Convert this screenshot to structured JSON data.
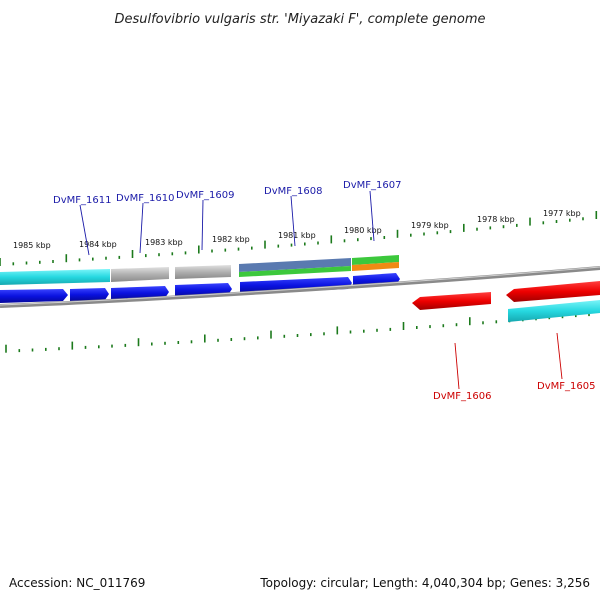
{
  "title": "Desulfovibrio vulgaris str. 'Miyazaki F', complete genome",
  "footer": {
    "accession": "Accession: NC_011769",
    "summary": "Topology: circular; Length: 4,040,304 bp; Genes: 3,256"
  },
  "scale_labels": [
    "1985 kbp",
    "1984 kbp",
    "1983 kbp",
    "1982 kbp",
    "1981 kbp",
    "1980 kbp",
    "1979 kbp",
    "1978 kbp",
    "1977 kbp"
  ],
  "gene_labels": {
    "forward": [
      "DvMF_1611",
      "DvMF_1610",
      "DvMF_1609",
      "DvMF_1608",
      "DvMF_1607"
    ],
    "reverse": [
      "DvMF_1606",
      "DvMF_1605"
    ]
  },
  "colors": {
    "forward_label": "#1a1aa8",
    "reverse_label": "#cc0000",
    "cds": "#0a12e0",
    "cds_reverse": "#ee0000",
    "gene_forward": "#26d8e0",
    "gene_grey": "#b0b0b0",
    "tick": "#1c7a1c",
    "backbone": "#8a8a8a",
    "feature_green": "#3cc83c",
    "feature_orange": "#f08a14",
    "feature_steel": "#5a7ab0"
  }
}
